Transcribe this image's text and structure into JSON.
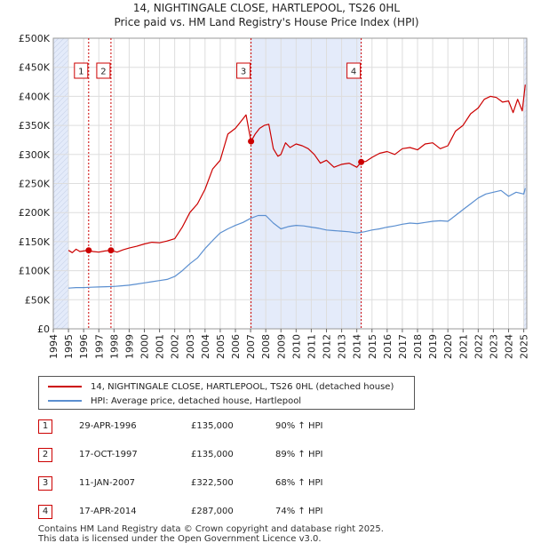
{
  "header": {
    "title": "14, NIGHTINGALE CLOSE, HARTLEPOOL, TS26 0HL",
    "subtitle": "Price paid vs. HM Land Registry's House Price Index (HPI)"
  },
  "colors": {
    "price_line": "#cc0000",
    "hpi_line": "#5b8fd0",
    "shade": "#e4ebfa",
    "grid": "#dddddd",
    "marker_border": "#cc0000"
  },
  "chart_data": {
    "type": "line",
    "title": "Price paid vs. HM Land Registry's House Price Index (HPI)",
    "xlim": [
      1994,
      2025.2
    ],
    "ylim": [
      0,
      500000
    ],
    "y_ticks": [
      0,
      50000,
      100000,
      150000,
      200000,
      250000,
      300000,
      350000,
      400000,
      450000,
      500000
    ],
    "y_tick_labels": [
      "£0",
      "£50K",
      "£100K",
      "£150K",
      "£200K",
      "£250K",
      "£300K",
      "£350K",
      "£400K",
      "£450K",
      "£500K"
    ],
    "x_ticks": [
      1994,
      1995,
      1996,
      1997,
      1998,
      1999,
      2000,
      2001,
      2002,
      2003,
      2004,
      2005,
      2006,
      2007,
      2008,
      2009,
      2010,
      2011,
      2012,
      2013,
      2014,
      2015,
      2016,
      2017,
      2018,
      2019,
      2020,
      2021,
      2022,
      2023,
      2024,
      2025
    ],
    "x_tick_labels": [
      "1994",
      "1995",
      "1996",
      "1997",
      "1998",
      "1999",
      "2000",
      "2001",
      "2002",
      "2003",
      "2004",
      "2005",
      "2006",
      "2007",
      "2008",
      "2009",
      "2010",
      "2011",
      "2012",
      "2013",
      "2014",
      "2015",
      "2016",
      "2017",
      "2018",
      "2019",
      "2020",
      "2021",
      "2022",
      "2023",
      "2024",
      "2025"
    ],
    "shaded_ranges": [
      [
        1994,
        1995
      ],
      [
        2007.03,
        2014.29
      ],
      [
        2025,
        2025.2
      ]
    ],
    "series": [
      {
        "name": "14, NIGHTINGALE CLOSE, HARTLEPOOL, TS26 0HL (detached house)",
        "x": [
          1995,
          1995.25,
          1995.5,
          1995.75,
          1996,
          1996.33,
          1996.6,
          1997,
          1997.4,
          1997.8,
          1998.2,
          1998.6,
          1999,
          1999.5,
          2000,
          2000.5,
          2001,
          2001.5,
          2002,
          2002.5,
          2003,
          2003.5,
          2004,
          2004.5,
          2005,
          2005.5,
          2006,
          2006.4,
          2006.7,
          2006.9,
          2007.03,
          2007.3,
          2007.6,
          2007.9,
          2008.2,
          2008.5,
          2008.8,
          2009,
          2009.3,
          2009.6,
          2010,
          2010.4,
          2010.8,
          2011.2,
          2011.6,
          2012,
          2012.5,
          2013,
          2013.5,
          2014,
          2014.29,
          2014.6,
          2015,
          2015.5,
          2016,
          2016.5,
          2017,
          2017.5,
          2018,
          2018.5,
          2019,
          2019.5,
          2020,
          2020.5,
          2021,
          2021.5,
          2022,
          2022.4,
          2022.8,
          2023.2,
          2023.6,
          2024,
          2024.3,
          2024.6,
          2024.9,
          2025.1
        ],
        "values": [
          135000,
          131000,
          137000,
          133000,
          134000,
          135000,
          133000,
          132000,
          134000,
          135000,
          132000,
          136000,
          139000,
          142000,
          146000,
          149000,
          148000,
          151000,
          155000,
          175000,
          200000,
          215000,
          240000,
          275000,
          290000,
          335000,
          345000,
          358000,
          368000,
          340000,
          322500,
          335000,
          345000,
          350000,
          352000,
          310000,
          297000,
          300000,
          320000,
          312000,
          318000,
          315000,
          310000,
          300000,
          285000,
          290000,
          278000,
          283000,
          285000,
          278000,
          287000,
          288000,
          295000,
          302000,
          305000,
          300000,
          310000,
          312000,
          308000,
          318000,
          320000,
          310000,
          315000,
          340000,
          350000,
          370000,
          380000,
          395000,
          400000,
          398000,
          390000,
          392000,
          372000,
          395000,
          375000,
          420000
        ]
      },
      {
        "name": "HPI: Average price, detached house, Hartlepool",
        "x": [
          1995,
          1995.5,
          1996,
          1996.5,
          1997,
          1997.5,
          1998,
          1998.5,
          1999,
          1999.5,
          2000,
          2000.5,
          2001,
          2001.5,
          2002,
          2002.5,
          2003,
          2003.5,
          2004,
          2004.5,
          2005,
          2005.5,
          2006,
          2006.5,
          2007,
          2007.5,
          2008,
          2008.5,
          2009,
          2009.5,
          2010,
          2010.5,
          2011,
          2011.5,
          2012,
          2012.5,
          2013,
          2013.5,
          2014,
          2014.5,
          2015,
          2015.5,
          2016,
          2016.5,
          2017,
          2017.5,
          2018,
          2018.5,
          2019,
          2019.5,
          2020,
          2020.5,
          2021,
          2021.5,
          2022,
          2022.5,
          2023,
          2023.5,
          2024,
          2024.5,
          2025,
          2025.1
        ],
        "values": [
          70000,
          71000,
          71000,
          71500,
          72000,
          72500,
          73000,
          74000,
          75000,
          77000,
          79000,
          81000,
          83000,
          85000,
          90000,
          100000,
          112000,
          122000,
          138000,
          152000,
          165000,
          172000,
          178000,
          183000,
          190000,
          195000,
          195000,
          182000,
          172000,
          176000,
          178000,
          177000,
          175000,
          173000,
          170000,
          169000,
          168000,
          167000,
          165000,
          167000,
          170000,
          172000,
          175000,
          177000,
          180000,
          182000,
          181000,
          183000,
          185000,
          186000,
          185000,
          195000,
          205000,
          215000,
          225000,
          232000,
          235000,
          238000,
          228000,
          235000,
          232000,
          242000
        ]
      }
    ],
    "sale_markers": [
      {
        "label": "1",
        "x": 1996.33,
        "value": 135000
      },
      {
        "label": "2",
        "x": 1997.8,
        "value": 135000
      },
      {
        "label": "3",
        "x": 2007.03,
        "value": 322500
      },
      {
        "label": "4",
        "x": 2014.29,
        "value": 287000
      }
    ]
  },
  "legend": {
    "items": [
      {
        "label": "14, NIGHTINGALE CLOSE, HARTLEPOOL, TS26 0HL (detached house)"
      },
      {
        "label": "HPI: Average price, detached house, Hartlepool"
      }
    ]
  },
  "sales": [
    {
      "num": "1",
      "date": "29-APR-1996",
      "price": "£135,000",
      "hpi": "90% ↑ HPI"
    },
    {
      "num": "2",
      "date": "17-OCT-1997",
      "price": "£135,000",
      "hpi": "89% ↑ HPI"
    },
    {
      "num": "3",
      "date": "11-JAN-2007",
      "price": "£322,500",
      "hpi": "68% ↑ HPI"
    },
    {
      "num": "4",
      "date": "17-APR-2014",
      "price": "£287,000",
      "hpi": "74% ↑ HPI"
    }
  ],
  "footer": {
    "line1": "Contains HM Land Registry data © Crown copyright and database right 2025.",
    "line2": "This data is licensed under the Open Government Licence v3.0."
  }
}
